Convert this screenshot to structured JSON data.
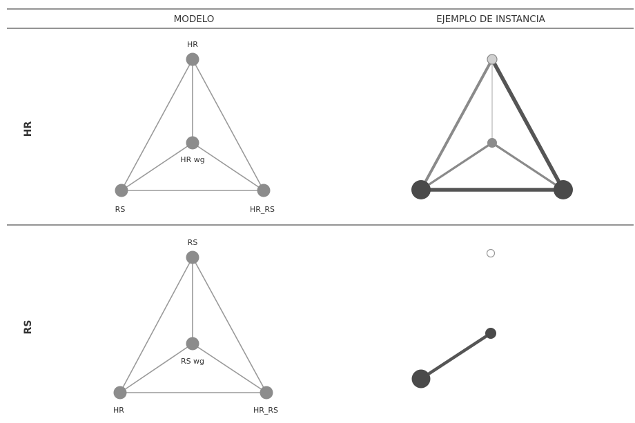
{
  "header": {
    "columns": [
      {
        "label": "MODELO"
      },
      {
        "label": "EJEMPLO DE INSTANCIA"
      }
    ]
  },
  "colors": {
    "model_node": "#8c8c8c",
    "model_edge": "#9a9a9a",
    "dark_node": "#4a4a4a",
    "dark_edge": "#555555",
    "medium_edge": "#8a8a8a",
    "light_edge": "#c4c4c4",
    "light_node": "#d0d0d0",
    "rule": "#555555"
  },
  "rows": [
    {
      "label": "HR",
      "model": {
        "nodes": [
          {
            "id": "top",
            "label": "HR"
          },
          {
            "id": "center",
            "label": "HR wg"
          },
          {
            "id": "left",
            "label": "RS"
          },
          {
            "id": "right",
            "label": "HR_RS"
          }
        ]
      },
      "instance": {
        "nodes": [
          {
            "id": "top",
            "tone": "light",
            "weight": 1
          },
          {
            "id": "center",
            "tone": "medium",
            "weight": 1
          },
          {
            "id": "left",
            "tone": "dark",
            "weight": 3
          },
          {
            "id": "right",
            "tone": "dark",
            "weight": 3
          }
        ],
        "edges": [
          {
            "from": "top",
            "to": "center",
            "tone": "light",
            "weight": 1
          },
          {
            "from": "top",
            "to": "left",
            "tone": "medium",
            "weight": 2
          },
          {
            "from": "top",
            "to": "right",
            "tone": "dark",
            "weight": 3
          },
          {
            "from": "center",
            "to": "left",
            "tone": "medium",
            "weight": 2
          },
          {
            "from": "center",
            "to": "right",
            "tone": "medium",
            "weight": 2
          },
          {
            "from": "left",
            "to": "right",
            "tone": "dark",
            "weight": 3
          }
        ]
      }
    },
    {
      "label": "RS",
      "model": {
        "nodes": [
          {
            "id": "top",
            "label": "RS"
          },
          {
            "id": "center",
            "label": "RS wg"
          },
          {
            "id": "left",
            "label": "HR"
          },
          {
            "id": "right",
            "label": "HR_RS"
          }
        ]
      },
      "instance": {
        "nodes": [
          {
            "id": "top",
            "tone": "hollow",
            "weight": 1
          },
          {
            "id": "center",
            "tone": "dark",
            "weight": 1.5
          },
          {
            "id": "left",
            "tone": "dark",
            "weight": 3
          }
        ],
        "edges": [
          {
            "from": "center",
            "to": "left",
            "tone": "dark",
            "weight": 2.5
          }
        ]
      }
    }
  ]
}
